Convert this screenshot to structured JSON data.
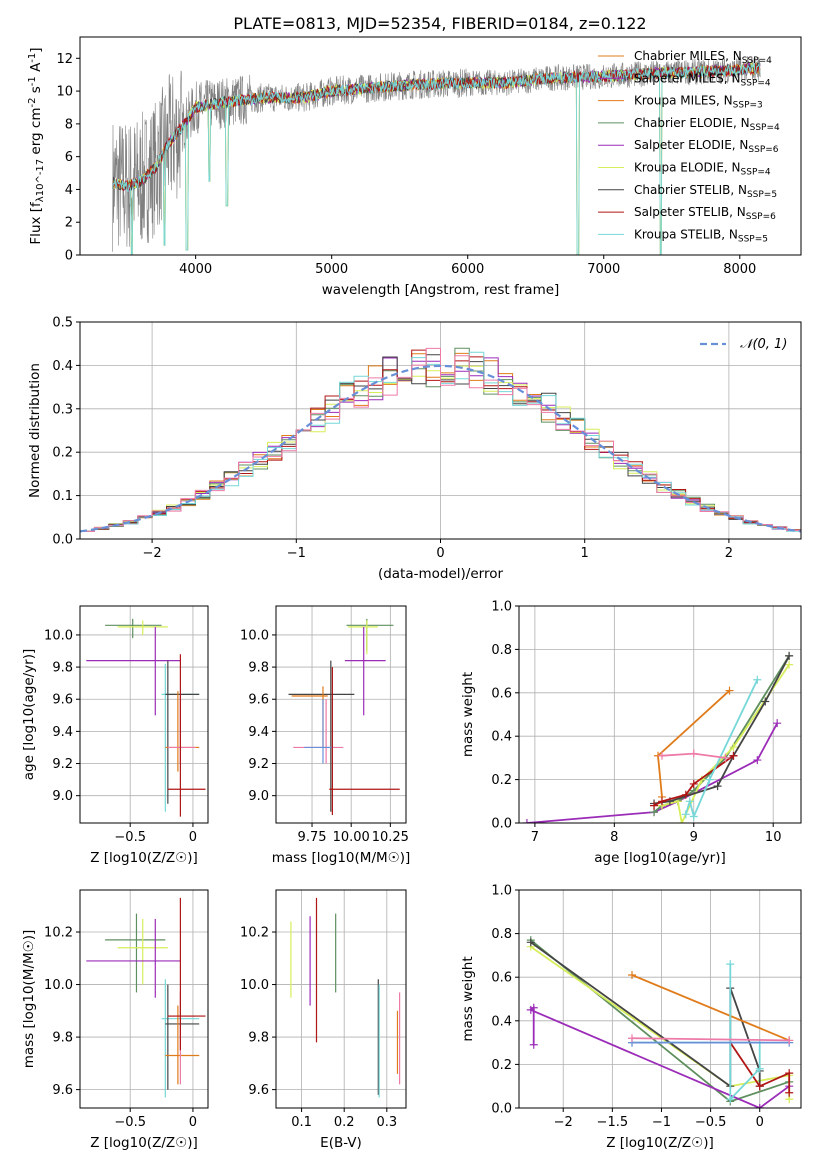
{
  "figure_title": "PLATE=0813, MJD=52354, FIBERID=0184, z=0.122",
  "colors": {
    "grey": "#808080",
    "orange": "#e07b1a",
    "green": "#5f8f5f",
    "purple": "#9b2cb8",
    "yellowgreen": "#d7ee5a",
    "darkgrey": "#444444",
    "darkred": "#b01515",
    "cyan": "#76d7d8",
    "pink": "#ee7aa8",
    "blue": "#6890d8"
  },
  "chart_data": [
    {
      "id": "spectrum",
      "type": "line",
      "xlabel": "wavelength [Angstrom, rest frame]",
      "ylabel": "Flux [f_λ10^-17 erg cm^-2 s^-1 A^-1]",
      "xlim": [
        3150,
        8450
      ],
      "ylim": [
        0,
        13.3
      ],
      "xticks": [
        4000,
        5000,
        6000,
        7000,
        8000
      ],
      "yticks": [
        0,
        2,
        4,
        6,
        8,
        10,
        12
      ],
      "legend_position": "top-right",
      "legend": [
        {
          "label": "Chabrier MILES, N_SSP=4",
          "color": "orange"
        },
        {
          "label": "Salpeter MILES, N_SSP=4",
          "color": "purple"
        },
        {
          "label": "Kroupa MILES, N_SSP=3",
          "color": "orange"
        },
        {
          "label": "Chabrier ELODIE, N_SSP=4",
          "color": "green"
        },
        {
          "label": "Salpeter ELODIE, N_SSP=6",
          "color": "purple"
        },
        {
          "label": "Kroupa ELODIE, N_SSP=4",
          "color": "yellowgreen"
        },
        {
          "label": "Chabrier STELIB, N_SSP=5",
          "color": "darkgrey"
        },
        {
          "label": "Salpeter STELIB, N_SSP=6",
          "color": "darkred"
        },
        {
          "label": "Kroupa STELIB, N_SSP=5",
          "color": "cyan"
        }
      ],
      "continuum": {
        "x": [
          3390,
          3500,
          3600,
          3700,
          3800,
          3900,
          4000,
          4200,
          4500,
          4800,
          5000,
          5300,
          5600,
          6000,
          6300,
          6600,
          7000,
          7400,
          7800,
          8150
        ],
        "y": [
          4.4,
          4.2,
          4.5,
          5.3,
          6.8,
          7.8,
          9.0,
          9.3,
          9.6,
          9.6,
          10.0,
          10.2,
          10.4,
          10.5,
          10.5,
          10.8,
          10.9,
          11.1,
          11.2,
          11.4
        ]
      },
      "dips": [
        {
          "x": 3530,
          "y": 0.0
        },
        {
          "x": 3770,
          "y": 0.6
        },
        {
          "x": 3935,
          "y": 0.3
        },
        {
          "x": 4230,
          "y": 3.0
        },
        {
          "x": 4100,
          "y": 4.5
        },
        {
          "x": 6810,
          "y": 0.0
        },
        {
          "x": 7420,
          "y": 0.0
        }
      ]
    },
    {
      "id": "residuals",
      "type": "histogram",
      "xlabel": "(data-model)/error",
      "ylabel": "Normed distribution",
      "xlim": [
        -2.5,
        2.5
      ],
      "ylim": [
        0,
        0.5
      ],
      "xticks": [
        -2,
        -1,
        0,
        1,
        2
      ],
      "yticks": [
        0.0,
        0.1,
        0.2,
        0.3,
        0.4,
        0.5
      ],
      "bin_width": 0.1,
      "curve_label": "𝒩(0, 1)",
      "curve_color": "blue",
      "series_colors": [
        "orange",
        "purple",
        "green",
        "yellowgreen",
        "darkgrey",
        "darkred",
        "cyan",
        "pink"
      ]
    },
    {
      "id": "z-age",
      "type": "errorbar",
      "xlabel": "Z [log10(Z/Z☉)]",
      "ylabel": "age  [log10(age/yr)]",
      "xlim": [
        -0.9,
        0.12
      ],
      "ylim": [
        8.83,
        10.18
      ],
      "xticks": [
        -0.5,
        0.0
      ],
      "yticks": [
        9.0,
        9.2,
        9.4,
        9.6,
        9.8,
        10.0
      ],
      "points": [
        {
          "x": -0.48,
          "y": 10.06,
          "xlo": -0.7,
          "xhi": -0.25,
          "ylo": 9.98,
          "yhi": 10.1,
          "color": "green"
        },
        {
          "x": -0.4,
          "y": 10.05,
          "xlo": -0.6,
          "xhi": -0.2,
          "ylo": 10.0,
          "yhi": 10.09,
          "color": "yellowgreen"
        },
        {
          "x": -0.3,
          "y": 9.84,
          "xlo": -0.85,
          "xhi": -0.1,
          "ylo": 9.5,
          "yhi": 10.05,
          "color": "purple"
        },
        {
          "x": -0.22,
          "y": 9.63,
          "xlo": -0.25,
          "xhi": 0.05,
          "ylo": 8.9,
          "yhi": 9.82,
          "color": "cyan"
        },
        {
          "x": -0.2,
          "y": 9.63,
          "xlo": -0.22,
          "xhi": 0.05,
          "ylo": 8.95,
          "yhi": 9.84,
          "color": "darkgrey"
        },
        {
          "x": -0.12,
          "y": 9.3,
          "xlo": -0.22,
          "xhi": 0.05,
          "ylo": 9.15,
          "yhi": 9.65,
          "color": "orange"
        },
        {
          "x": -0.1,
          "y": 9.3,
          "xlo": -0.2,
          "xhi": 0.02,
          "ylo": 9.2,
          "yhi": 9.62,
          "color": "pink"
        },
        {
          "x": -0.1,
          "y": 9.04,
          "xlo": -0.2,
          "xhi": 0.1,
          "ylo": 8.87,
          "yhi": 9.88,
          "color": "darkred"
        }
      ]
    },
    {
      "id": "mass-age",
      "type": "errorbar",
      "xlabel": "mass [log10(M/M☉)]",
      "ylabel": "",
      "xlim": [
        9.52,
        10.35
      ],
      "ylim": [
        8.83,
        10.18
      ],
      "xticks": [
        9.75,
        10.0,
        10.25
      ],
      "yticks": [
        9.0,
        9.2,
        9.4,
        9.6,
        9.8,
        10.0
      ],
      "xtick_labels": [
        "9.75",
        "10.00",
        "10.25"
      ],
      "points": [
        {
          "x": 10.1,
          "y": 10.06,
          "xlo": 9.97,
          "xhi": 10.27,
          "ylo": 9.9,
          "yhi": 10.1,
          "color": "green"
        },
        {
          "x": 10.1,
          "y": 10.05,
          "xlo": 9.98,
          "xhi": 10.17,
          "ylo": 9.88,
          "yhi": 10.09,
          "color": "yellowgreen"
        },
        {
          "x": 10.08,
          "y": 9.84,
          "xlo": 9.96,
          "xhi": 10.22,
          "ylo": 9.5,
          "yhi": 10.05,
          "color": "purple"
        },
        {
          "x": 9.87,
          "y": 9.63,
          "xlo": 9.6,
          "xhi": 10.02,
          "ylo": 8.9,
          "yhi": 9.84,
          "color": "darkgrey"
        },
        {
          "x": 9.82,
          "y": 9.62,
          "xlo": 9.62,
          "xhi": 9.85,
          "ylo": 9.3,
          "yhi": 9.68,
          "color": "orange"
        },
        {
          "x": 9.84,
          "y": 9.3,
          "xlo": 9.63,
          "xhi": 9.95,
          "ylo": 9.2,
          "yhi": 9.6,
          "color": "pink"
        },
        {
          "x": 9.82,
          "y": 9.3,
          "xlo": 9.7,
          "xhi": 9.88,
          "ylo": 9.2,
          "yhi": 9.6,
          "color": "blue"
        },
        {
          "x": 9.88,
          "y": 9.04,
          "xlo": 9.86,
          "xhi": 10.31,
          "ylo": 8.88,
          "yhi": 9.8,
          "color": "darkred"
        }
      ]
    },
    {
      "id": "age-weight",
      "type": "line",
      "xlabel": "age  [log10(age/yr)]",
      "ylabel": "mass weight",
      "xlim": [
        6.8,
        10.35
      ],
      "ylim": [
        0,
        1.0
      ],
      "xticks": [
        7,
        8,
        9,
        10
      ],
      "yticks": [
        0.0,
        0.2,
        0.4,
        0.6,
        0.8,
        1.0
      ],
      "series": [
        {
          "color": "purple",
          "x": [
            6.9,
            8.5,
            8.8,
            9.8,
            10.05
          ],
          "y": [
            0.0,
            0.05,
            0.1,
            0.29,
            0.46
          ]
        },
        {
          "color": "orange",
          "x": [
            8.6,
            8.55,
            9.45
          ],
          "y": [
            0.12,
            0.31,
            0.61
          ]
        },
        {
          "color": "green",
          "x": [
            8.5,
            8.6,
            8.8,
            9.0,
            9.4,
            10.2
          ],
          "y": [
            0.05,
            0.08,
            0.1,
            0.15,
            0.3,
            0.77
          ]
        },
        {
          "color": "yellowgreen",
          "x": [
            8.6,
            8.8,
            8.85,
            9.1,
            9.5,
            10.2
          ],
          "y": [
            0.08,
            0.1,
            0.0,
            0.2,
            0.35,
            0.73
          ]
        },
        {
          "color": "darkgrey",
          "x": [
            8.5,
            8.7,
            9.3,
            9.5,
            9.9,
            10.2
          ],
          "y": [
            0.09,
            0.1,
            0.17,
            0.31,
            0.56,
            0.77
          ]
        },
        {
          "color": "darkred",
          "x": [
            8.5,
            8.6,
            8.9,
            9.0,
            9.5
          ],
          "y": [
            0.08,
            0.1,
            0.13,
            0.18,
            0.31
          ]
        },
        {
          "color": "cyan",
          "x": [
            8.9,
            8.95,
            9.0,
            9.2,
            9.8
          ],
          "y": [
            0.04,
            0.1,
            0.03,
            0.2,
            0.66
          ]
        },
        {
          "color": "pink",
          "x": [
            8.6,
            9.0,
            9.4
          ],
          "y": [
            0.31,
            0.32,
            0.3
          ]
        }
      ]
    },
    {
      "id": "z-mass",
      "type": "errorbar",
      "xlabel": "Z [log10(Z/Z☉)]",
      "ylabel": "mass [log10(M/M☉)]",
      "xlim": [
        -0.9,
        0.12
      ],
      "ylim": [
        9.53,
        10.36
      ],
      "xticks": [
        -0.5,
        0.0
      ],
      "yticks": [
        9.6,
        9.8,
        10.0,
        10.2
      ],
      "points": [
        {
          "x": -0.45,
          "y": 10.17,
          "xlo": -0.7,
          "xhi": -0.22,
          "ylo": 9.97,
          "yhi": 10.27,
          "color": "green"
        },
        {
          "x": -0.4,
          "y": 10.14,
          "xlo": -0.6,
          "xhi": -0.2,
          "ylo": 10.0,
          "yhi": 10.25,
          "color": "yellowgreen"
        },
        {
          "x": -0.3,
          "y": 10.09,
          "xlo": -0.85,
          "xhi": -0.1,
          "ylo": 9.95,
          "yhi": 10.25,
          "color": "purple"
        },
        {
          "x": -0.22,
          "y": 9.87,
          "xlo": -0.25,
          "xhi": 0.05,
          "ylo": 9.57,
          "yhi": 10.02,
          "color": "cyan"
        },
        {
          "x": -0.2,
          "y": 9.85,
          "xlo": -0.22,
          "xhi": 0.05,
          "ylo": 9.6,
          "yhi": 10.0,
          "color": "darkgrey"
        },
        {
          "x": -0.12,
          "y": 9.73,
          "xlo": -0.22,
          "xhi": 0.05,
          "ylo": 9.62,
          "yhi": 9.92,
          "color": "orange"
        },
        {
          "x": -0.1,
          "y": 9.88,
          "xlo": -0.2,
          "xhi": 0.02,
          "ylo": 9.62,
          "yhi": 9.97,
          "color": "pink"
        },
        {
          "x": -0.1,
          "y": 9.88,
          "xlo": -0.2,
          "xhi": 0.1,
          "ylo": 9.75,
          "yhi": 10.33,
          "color": "darkred"
        }
      ]
    },
    {
      "id": "ebv-mass",
      "type": "errorbar",
      "xlabel": "E(B-V)",
      "ylabel": "",
      "xlim": [
        0.04,
        0.345
      ],
      "ylim": [
        9.53,
        10.36
      ],
      "xticks": [
        0.1,
        0.2,
        0.3
      ],
      "yticks": [
        9.6,
        9.8,
        10.0,
        10.2
      ],
      "points": [
        {
          "x": 0.075,
          "y": 10.09,
          "ylo": 9.95,
          "yhi": 10.24,
          "color": "yellowgreen"
        },
        {
          "x": 0.12,
          "y": 10.1,
          "ylo": 9.92,
          "yhi": 10.26,
          "color": "purple"
        },
        {
          "x": 0.135,
          "y": 10.05,
          "ylo": 9.78,
          "yhi": 10.33,
          "color": "darkred"
        },
        {
          "x": 0.18,
          "y": 10.12,
          "ylo": 9.97,
          "yhi": 10.27,
          "color": "green"
        },
        {
          "x": 0.28,
          "y": 9.82,
          "ylo": 9.58,
          "yhi": 10.02,
          "color": "darkgrey"
        },
        {
          "x": 0.282,
          "y": 9.8,
          "ylo": 9.57,
          "yhi": 10.0,
          "color": "cyan"
        },
        {
          "x": 0.325,
          "y": 9.78,
          "ylo": 9.66,
          "yhi": 9.9,
          "color": "orange"
        },
        {
          "x": 0.33,
          "y": 9.8,
          "ylo": 9.62,
          "yhi": 9.97,
          "color": "pink"
        }
      ]
    },
    {
      "id": "z-weight",
      "type": "line",
      "xlabel": "Z [log10(Z/Z☉)]",
      "ylabel": "mass weight",
      "xlim": [
        -2.45,
        0.42
      ],
      "ylim": [
        0,
        1.0
      ],
      "xticks": [
        -2.0,
        -1.5,
        -1.0,
        -0.5,
        0.0
      ],
      "yticks": [
        0.0,
        0.2,
        0.4,
        0.6,
        0.8,
        1.0
      ],
      "series": [
        {
          "color": "green",
          "x": [
            -2.33,
            -0.3,
            0.3
          ],
          "y": [
            0.77,
            0.03,
            0.12
          ]
        },
        {
          "color": "yellowgreen",
          "x": [
            -2.33,
            -0.3,
            0.3,
            0.3
          ],
          "y": [
            0.74,
            0.1,
            0.15,
            0.04
          ]
        },
        {
          "color": "darkgrey",
          "x": [
            -2.33,
            -0.3,
            -0.3,
            0.0,
            0.0
          ],
          "y": [
            0.76,
            0.1,
            0.55,
            0.17,
            0.1
          ]
        },
        {
          "color": "purple",
          "x": [
            -2.3,
            -2.3,
            -2.33,
            0.0,
            0.3
          ],
          "y": [
            0.29,
            0.46,
            0.45,
            0.0,
            0.1
          ]
        },
        {
          "color": "orange",
          "x": [
            -1.3,
            0.3
          ],
          "y": [
            0.61,
            0.31
          ]
        },
        {
          "color": "darkred",
          "x": [
            -0.3,
            0.0,
            0.3,
            0.3
          ],
          "y": [
            0.3,
            0.1,
            0.16,
            0.07
          ]
        },
        {
          "color": "cyan",
          "x": [
            -0.3,
            -0.3,
            0.0,
            0.0,
            -1.3
          ],
          "y": [
            0.66,
            0.04,
            0.18,
            0.3,
            0.3
          ]
        },
        {
          "color": "blue",
          "x": [
            -1.3,
            0.3
          ],
          "y": [
            0.3,
            0.3
          ]
        },
        {
          "color": "pink",
          "x": [
            -1.3,
            0.3
          ],
          "y": [
            0.32,
            0.31
          ]
        }
      ]
    }
  ]
}
